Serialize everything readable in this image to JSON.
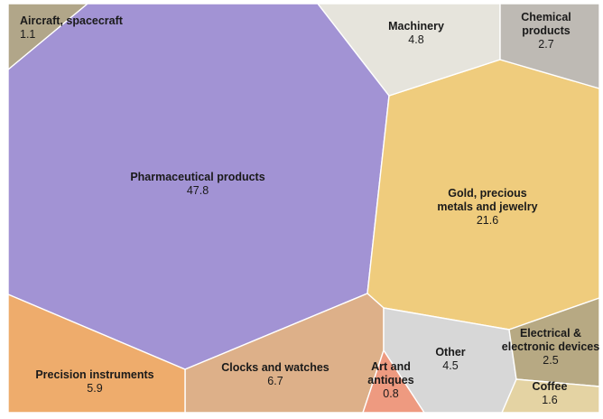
{
  "chart_data": {
    "type": "voronoi-treemap",
    "title": "",
    "unit": "",
    "total_shown": 100.0,
    "items": [
      {
        "id": "pharma",
        "label_lines": [
          "Pharmaceutical products"
        ],
        "value": 47.8,
        "color": "#a293d4"
      },
      {
        "id": "gold",
        "label_lines": [
          "Gold, precious",
          "metals and jewelry"
        ],
        "value": 21.6,
        "color": "#efcc7d"
      },
      {
        "id": "clocks",
        "label_lines": [
          "Clocks and watches"
        ],
        "value": 6.7,
        "color": "#ddb089"
      },
      {
        "id": "precision",
        "label_lines": [
          "Precision instruments"
        ],
        "value": 5.9,
        "color": "#eeac6c"
      },
      {
        "id": "machinery",
        "label_lines": [
          "Machinery"
        ],
        "value": 4.8,
        "color": "#e6e4dc"
      },
      {
        "id": "other",
        "label_lines": [
          "Other"
        ],
        "value": 4.5,
        "color": "#d7d7d7"
      },
      {
        "id": "chemical",
        "label_lines": [
          "Chemical",
          "products"
        ],
        "value": 2.7,
        "color": "#bebab4"
      },
      {
        "id": "electrical",
        "label_lines": [
          "Electrical &",
          "electronic devices"
        ],
        "value": 2.5,
        "color": "#b7a983"
      },
      {
        "id": "coffee",
        "label_lines": [
          "Coffee"
        ],
        "value": 1.6,
        "color": "#e4d3a3"
      },
      {
        "id": "aircraft",
        "label_lines": [
          "Aircraft, spacecraft"
        ],
        "value": 1.1,
        "color": "#b1a689"
      },
      {
        "id": "art",
        "label_lines": [
          "Art and",
          "antiques"
        ],
        "value": 0.8,
        "color": "#ee9a80"
      }
    ]
  }
}
